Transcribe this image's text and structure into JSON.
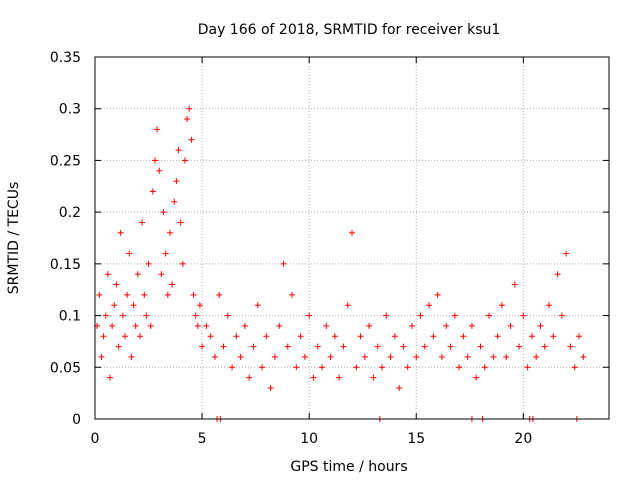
{
  "chart_data": {
    "type": "scatter",
    "title": "Day 166 of 2018, SRMTID for receiver ksu1",
    "xlabel": "GPS time / hours",
    "ylabel": "SRMTID / TECUs",
    "xlim": [
      0,
      24
    ],
    "ylim": [
      0,
      0.35
    ],
    "xticks": [
      0,
      5,
      10,
      15,
      20
    ],
    "xtick_labels": [
      "0",
      "5",
      "10",
      "15",
      "20"
    ],
    "yticks": [
      0,
      0.05,
      0.1,
      0.15,
      0.2,
      0.25,
      0.3,
      0.35
    ],
    "ytick_labels": [
      "0",
      "0.05",
      "0.1",
      "0.15",
      "0.2",
      "0.25",
      "0.3",
      "0.35"
    ],
    "grid": true,
    "marker": "+",
    "color": "#ff0000",
    "series": [
      {
        "name": "SRMTID",
        "description": "dense scatter of '+' markers; representative points read from the plot",
        "points": [
          [
            0.1,
            0.09
          ],
          [
            0.2,
            0.12
          ],
          [
            0.3,
            0.06
          ],
          [
            0.4,
            0.08
          ],
          [
            0.5,
            0.1
          ],
          [
            0.6,
            0.14
          ],
          [
            0.7,
            0.04
          ],
          [
            0.8,
            0.09
          ],
          [
            0.9,
            0.11
          ],
          [
            1.0,
            0.13
          ],
          [
            1.1,
            0.07
          ],
          [
            1.2,
            0.18
          ],
          [
            1.3,
            0.1
          ],
          [
            1.4,
            0.08
          ],
          [
            1.5,
            0.12
          ],
          [
            1.6,
            0.16
          ],
          [
            1.7,
            0.06
          ],
          [
            1.8,
            0.11
          ],
          [
            1.9,
            0.09
          ],
          [
            2.0,
            0.14
          ],
          [
            2.1,
            0.08
          ],
          [
            2.2,
            0.19
          ],
          [
            2.3,
            0.12
          ],
          [
            2.4,
            0.1
          ],
          [
            2.5,
            0.15
          ],
          [
            2.6,
            0.09
          ],
          [
            2.7,
            0.22
          ],
          [
            2.8,
            0.25
          ],
          [
            2.9,
            0.28
          ],
          [
            3.0,
            0.24
          ],
          [
            3.1,
            0.14
          ],
          [
            3.2,
            0.2
          ],
          [
            3.3,
            0.16
          ],
          [
            3.4,
            0.12
          ],
          [
            3.5,
            0.18
          ],
          [
            3.6,
            0.13
          ],
          [
            3.7,
            0.21
          ],
          [
            3.8,
            0.23
          ],
          [
            3.9,
            0.26
          ],
          [
            4.0,
            0.19
          ],
          [
            4.1,
            0.15
          ],
          [
            4.2,
            0.25
          ],
          [
            4.3,
            0.29
          ],
          [
            4.4,
            0.3
          ],
          [
            4.5,
            0.27
          ],
          [
            4.6,
            0.12
          ],
          [
            4.7,
            0.1
          ],
          [
            4.8,
            0.09
          ],
          [
            4.9,
            0.11
          ],
          [
            5.0,
            0.07
          ],
          [
            5.2,
            0.09
          ],
          [
            5.4,
            0.08
          ],
          [
            5.6,
            0.06
          ],
          [
            5.8,
            0.12
          ],
          [
            6.0,
            0.07
          ],
          [
            6.2,
            0.1
          ],
          [
            6.4,
            0.05
          ],
          [
            6.6,
            0.08
          ],
          [
            6.8,
            0.06
          ],
          [
            7.0,
            0.09
          ],
          [
            7.2,
            0.04
          ],
          [
            7.4,
            0.07
          ],
          [
            7.6,
            0.11
          ],
          [
            7.8,
            0.05
          ],
          [
            8.0,
            0.08
          ],
          [
            8.2,
            0.03
          ],
          [
            8.4,
            0.06
          ],
          [
            8.6,
            0.09
          ],
          [
            8.8,
            0.15
          ],
          [
            9.0,
            0.07
          ],
          [
            9.2,
            0.12
          ],
          [
            9.4,
            0.05
          ],
          [
            9.6,
            0.08
          ],
          [
            9.8,
            0.06
          ],
          [
            10.0,
            0.1
          ],
          [
            10.2,
            0.04
          ],
          [
            10.4,
            0.07
          ],
          [
            10.6,
            0.05
          ],
          [
            10.8,
            0.09
          ],
          [
            11.0,
            0.06
          ],
          [
            11.2,
            0.08
          ],
          [
            11.4,
            0.04
          ],
          [
            11.6,
            0.07
          ],
          [
            11.8,
            0.11
          ],
          [
            12.0,
            0.18
          ],
          [
            12.2,
            0.05
          ],
          [
            12.4,
            0.08
          ],
          [
            12.6,
            0.06
          ],
          [
            12.8,
            0.09
          ],
          [
            13.0,
            0.04
          ],
          [
            13.2,
            0.07
          ],
          [
            13.4,
            0.05
          ],
          [
            13.6,
            0.1
          ],
          [
            13.8,
            0.06
          ],
          [
            14.0,
            0.08
          ],
          [
            14.2,
            0.03
          ],
          [
            14.4,
            0.07
          ],
          [
            14.6,
            0.05
          ],
          [
            14.8,
            0.09
          ],
          [
            15.0,
            0.06
          ],
          [
            15.2,
            0.1
          ],
          [
            15.4,
            0.07
          ],
          [
            15.6,
            0.11
          ],
          [
            15.8,
            0.08
          ],
          [
            16.0,
            0.12
          ],
          [
            16.2,
            0.06
          ],
          [
            16.4,
            0.09
          ],
          [
            16.6,
            0.07
          ],
          [
            16.8,
            0.1
          ],
          [
            17.0,
            0.05
          ],
          [
            17.2,
            0.08
          ],
          [
            17.4,
            0.06
          ],
          [
            17.6,
            0.09
          ],
          [
            17.8,
            0.04
          ],
          [
            18.0,
            0.07
          ],
          [
            18.2,
            0.05
          ],
          [
            18.4,
            0.1
          ],
          [
            18.6,
            0.06
          ],
          [
            18.8,
            0.08
          ],
          [
            19.0,
            0.11
          ],
          [
            19.2,
            0.06
          ],
          [
            19.4,
            0.09
          ],
          [
            19.6,
            0.13
          ],
          [
            19.8,
            0.07
          ],
          [
            20.0,
            0.1
          ],
          [
            20.2,
            0.05
          ],
          [
            20.4,
            0.08
          ],
          [
            20.6,
            0.06
          ],
          [
            20.8,
            0.09
          ],
          [
            21.0,
            0.07
          ],
          [
            21.2,
            0.11
          ],
          [
            21.4,
            0.08
          ],
          [
            21.6,
            0.14
          ],
          [
            21.8,
            0.1
          ],
          [
            22.0,
            0.16
          ],
          [
            22.2,
            0.07
          ],
          [
            22.4,
            0.05
          ],
          [
            22.6,
            0.08
          ],
          [
            22.8,
            0.06
          ]
        ]
      }
    ],
    "zero_markers": [
      5.7,
      5.85,
      17.6,
      18.1,
      20.3,
      20.45,
      13.3,
      22.5
    ]
  }
}
